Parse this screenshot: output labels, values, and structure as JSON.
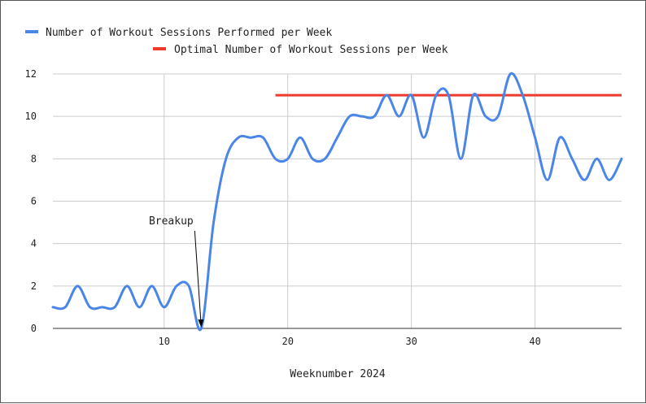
{
  "chart_data": {
    "type": "line",
    "title": "",
    "xlabel": "Weeknumber 2024",
    "ylabel": "",
    "xlim": [
      1,
      47
    ],
    "ylim": [
      0,
      12
    ],
    "x_ticks": [
      10,
      20,
      30,
      40
    ],
    "y_ticks": [
      0,
      2,
      4,
      6,
      8,
      10,
      12
    ],
    "grid": true,
    "legend_position": "top",
    "series": [
      {
        "name": "Number of Workout Sessions Performed per Week",
        "color": "#4a86e8",
        "x": [
          1,
          2,
          3,
          4,
          5,
          6,
          7,
          8,
          9,
          10,
          11,
          12,
          13,
          14,
          15,
          16,
          17,
          18,
          19,
          20,
          21,
          22,
          23,
          24,
          25,
          26,
          27,
          28,
          29,
          30,
          31,
          32,
          33,
          34,
          35,
          36,
          37,
          38,
          39,
          40,
          41,
          42,
          43,
          44,
          45,
          46,
          47
        ],
        "values": [
          1,
          1,
          2,
          1,
          1,
          1,
          2,
          1,
          2,
          1,
          2,
          2,
          0,
          5,
          8,
          9,
          9,
          9,
          8,
          8,
          9,
          8,
          8,
          9,
          10,
          10,
          10,
          11,
          10,
          11,
          9,
          11,
          11,
          8,
          11,
          10,
          10,
          12,
          11,
          9,
          7,
          9,
          8,
          7,
          8,
          7,
          8
        ]
      },
      {
        "name": "Optimal Number of Workout Sessions per Week",
        "color": "#ee3a2c",
        "x": [
          19,
          47
        ],
        "values": [
          11,
          11
        ]
      }
    ],
    "annotations": [
      {
        "text": "Breakup",
        "x": 13,
        "y": 0
      }
    ]
  }
}
